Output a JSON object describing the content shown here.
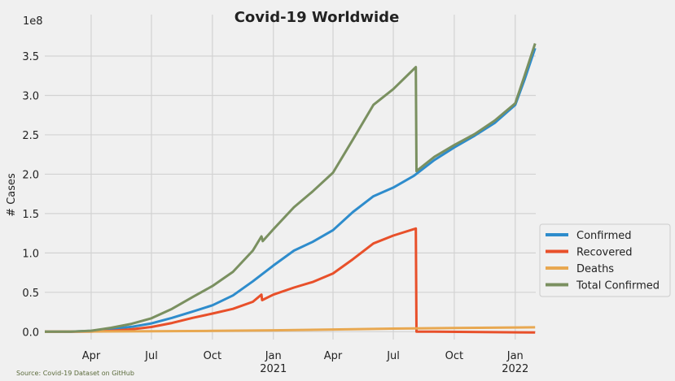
{
  "chart_data": {
    "type": "line",
    "title": "Covid-19 Worldwide",
    "xlabel": "",
    "ylabel": "# Cases",
    "y_offset_text": "1e8",
    "y_unit": 100000000,
    "source": "Source: Covid-19 Dataset on GitHub",
    "x_range": [
      "2020-01-22",
      "2022-02-01"
    ],
    "ylim": [
      -0.1,
      3.82
    ],
    "grid": true,
    "legend_position": "lower-right outside",
    "x_ticks": [
      {
        "date": "2020-04-01",
        "label": "Apr",
        "sub": ""
      },
      {
        "date": "2020-07-01",
        "label": "Jul",
        "sub": ""
      },
      {
        "date": "2020-10-01",
        "label": "Oct",
        "sub": ""
      },
      {
        "date": "2021-01-01",
        "label": "Jan",
        "sub": "2021"
      },
      {
        "date": "2021-04-01",
        "label": "Apr",
        "sub": ""
      },
      {
        "date": "2021-07-01",
        "label": "Jul",
        "sub": ""
      },
      {
        "date": "2021-10-01",
        "label": "Oct",
        "sub": ""
      },
      {
        "date": "2022-01-01",
        "label": "Jan",
        "sub": "2022"
      }
    ],
    "y_ticks": [
      0.0,
      0.5,
      1.0,
      1.5,
      2.0,
      2.5,
      3.0,
      3.5
    ],
    "y_tick_labels": [
      "0.0",
      "0.5",
      "1.0",
      "1.5",
      "2.0",
      "2.5",
      "3.0",
      "3.5"
    ],
    "series": [
      {
        "name": "Confirmed",
        "color": "#2e8ccc",
        "points": [
          [
            "2020-01-22",
            0.0
          ],
          [
            "2020-03-01",
            0.001
          ],
          [
            "2020-04-01",
            0.01
          ],
          [
            "2020-05-01",
            0.033
          ],
          [
            "2020-06-01",
            0.062
          ],
          [
            "2020-07-01",
            0.105
          ],
          [
            "2020-08-01",
            0.175
          ],
          [
            "2020-09-01",
            0.255
          ],
          [
            "2020-10-01",
            0.335
          ],
          [
            "2020-11-01",
            0.46
          ],
          [
            "2020-12-01",
            0.64
          ],
          [
            "2021-01-01",
            0.84
          ],
          [
            "2021-02-01",
            1.03
          ],
          [
            "2021-03-01",
            1.14
          ],
          [
            "2021-04-01",
            1.29
          ],
          [
            "2021-05-01",
            1.52
          ],
          [
            "2021-06-01",
            1.72
          ],
          [
            "2021-07-01",
            1.83
          ],
          [
            "2021-08-01",
            1.98
          ],
          [
            "2021-08-12",
            2.05
          ],
          [
            "2021-09-01",
            2.18
          ],
          [
            "2021-10-01",
            2.34
          ],
          [
            "2021-11-01",
            2.49
          ],
          [
            "2021-12-01",
            2.65
          ],
          [
            "2022-01-01",
            2.88
          ],
          [
            "2022-01-15",
            3.2
          ],
          [
            "2022-01-31",
            3.6
          ]
        ]
      },
      {
        "name": "Recovered",
        "color": "#e8502a",
        "points": [
          [
            "2020-01-22",
            0.0
          ],
          [
            "2020-03-01",
            0.0
          ],
          [
            "2020-04-01",
            0.002
          ],
          [
            "2020-05-01",
            0.01
          ],
          [
            "2020-06-01",
            0.03
          ],
          [
            "2020-07-01",
            0.06
          ],
          [
            "2020-08-01",
            0.11
          ],
          [
            "2020-09-01",
            0.175
          ],
          [
            "2020-10-01",
            0.23
          ],
          [
            "2020-11-01",
            0.29
          ],
          [
            "2020-12-01",
            0.38
          ],
          [
            "2020-12-14",
            0.47
          ],
          [
            "2020-12-15",
            0.4
          ],
          [
            "2021-01-01",
            0.47
          ],
          [
            "2021-02-01",
            0.56
          ],
          [
            "2021-03-01",
            0.63
          ],
          [
            "2021-04-01",
            0.74
          ],
          [
            "2021-05-01",
            0.92
          ],
          [
            "2021-06-01",
            1.12
          ],
          [
            "2021-07-01",
            1.22
          ],
          [
            "2021-08-04",
            1.31
          ],
          [
            "2021-08-05",
            0.0
          ],
          [
            "2021-09-01",
            0.0
          ],
          [
            "2022-01-31",
            -0.01
          ]
        ]
      },
      {
        "name": "Deaths",
        "color": "#e8a851",
        "points": [
          [
            "2020-01-22",
            0.0
          ],
          [
            "2020-04-01",
            0.002
          ],
          [
            "2020-07-01",
            0.005
          ],
          [
            "2020-10-01",
            0.01
          ],
          [
            "2021-01-01",
            0.018
          ],
          [
            "2021-04-01",
            0.028
          ],
          [
            "2021-07-01",
            0.039
          ],
          [
            "2021-10-01",
            0.047
          ],
          [
            "2022-01-01",
            0.054
          ],
          [
            "2022-01-31",
            0.056
          ]
        ]
      },
      {
        "name": "Total Confirmed",
        "color": "#7a9060",
        "points": [
          [
            "2020-01-22",
            0.0
          ],
          [
            "2020-03-01",
            0.001
          ],
          [
            "2020-04-01",
            0.012
          ],
          [
            "2020-05-01",
            0.05
          ],
          [
            "2020-06-01",
            0.1
          ],
          [
            "2020-07-01",
            0.17
          ],
          [
            "2020-08-01",
            0.29
          ],
          [
            "2020-09-01",
            0.44
          ],
          [
            "2020-10-01",
            0.58
          ],
          [
            "2020-11-01",
            0.76
          ],
          [
            "2020-12-01",
            1.03
          ],
          [
            "2020-12-14",
            1.21
          ],
          [
            "2020-12-16",
            1.15
          ],
          [
            "2021-01-01",
            1.3
          ],
          [
            "2021-02-01",
            1.58
          ],
          [
            "2021-03-01",
            1.78
          ],
          [
            "2021-04-01",
            2.02
          ],
          [
            "2021-05-01",
            2.44
          ],
          [
            "2021-06-01",
            2.88
          ],
          [
            "2021-07-01",
            3.08
          ],
          [
            "2021-08-04",
            3.36
          ],
          [
            "2021-08-05",
            2.04
          ],
          [
            "2021-09-01",
            2.22
          ],
          [
            "2021-10-01",
            2.37
          ],
          [
            "2021-11-01",
            2.51
          ],
          [
            "2021-12-01",
            2.68
          ],
          [
            "2022-01-01",
            2.9
          ],
          [
            "2022-01-15",
            3.25
          ],
          [
            "2022-01-31",
            3.66
          ]
        ]
      }
    ]
  }
}
